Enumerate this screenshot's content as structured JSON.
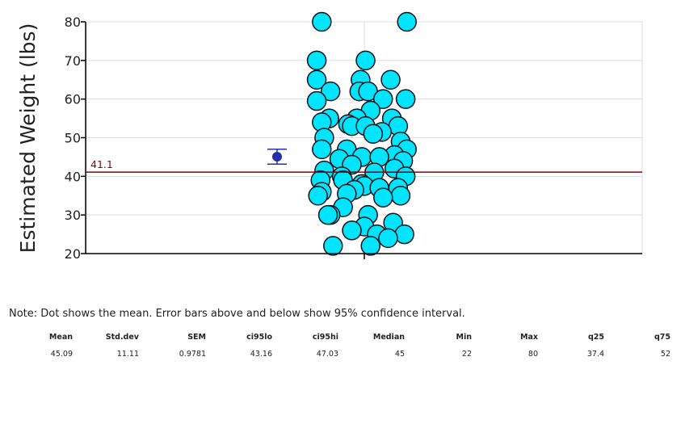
{
  "chart_data": {
    "type": "scatter",
    "title": "",
    "xlabel": "",
    "ylabel": "Estimated Weight (lbs)",
    "ylim": [
      20,
      80
    ],
    "yticks": [
      20,
      30,
      40,
      50,
      60,
      70,
      80
    ],
    "grid": true,
    "reference_line": {
      "value": 41.1,
      "label": "41.1",
      "color": "#8b0000"
    },
    "summary_marker": {
      "mean": 45.09,
      "ci_low": 43.16,
      "ci_high": 47.03,
      "color": "#2233aa"
    },
    "point_color": "#00e5ff",
    "points": [
      {
        "x": -0.34,
        "y": 80
      },
      {
        "x": 0.34,
        "y": 80
      },
      {
        "x": -0.38,
        "y": 70
      },
      {
        "x": 0.01,
        "y": 70
      },
      {
        "x": -0.38,
        "y": 65
      },
      {
        "x": -0.03,
        "y": 65
      },
      {
        "x": 0.21,
        "y": 65
      },
      {
        "x": -0.27,
        "y": 62
      },
      {
        "x": -0.04,
        "y": 62
      },
      {
        "x": 0.03,
        "y": 62
      },
      {
        "x": -0.38,
        "y": 59.5
      },
      {
        "x": 0.15,
        "y": 60
      },
      {
        "x": 0.33,
        "y": 60
      },
      {
        "x": 0.05,
        "y": 57
      },
      {
        "x": -0.28,
        "y": 55
      },
      {
        "x": -0.06,
        "y": 55
      },
      {
        "x": 0.22,
        "y": 55
      },
      {
        "x": -0.34,
        "y": 54
      },
      {
        "x": -0.13,
        "y": 53.5
      },
      {
        "x": -0.1,
        "y": 53
      },
      {
        "x": 0.01,
        "y": 53
      },
      {
        "x": 0.27,
        "y": 53
      },
      {
        "x": 0.14,
        "y": 51.5
      },
      {
        "x": 0.07,
        "y": 51
      },
      {
        "x": -0.32,
        "y": 50
      },
      {
        "x": 0.29,
        "y": 49
      },
      {
        "x": -0.34,
        "y": 47
      },
      {
        "x": -0.14,
        "y": 47
      },
      {
        "x": 0.34,
        "y": 47
      },
      {
        "x": 0.24,
        "y": 45.5
      },
      {
        "x": -0.02,
        "y": 45
      },
      {
        "x": 0.12,
        "y": 45
      },
      {
        "x": -0.2,
        "y": 44.5
      },
      {
        "x": 0.31,
        "y": 44
      },
      {
        "x": -0.1,
        "y": 43
      },
      {
        "x": 0.24,
        "y": 42
      },
      {
        "x": -0.32,
        "y": 41.5
      },
      {
        "x": 0.08,
        "y": 41
      },
      {
        "x": -0.18,
        "y": 40
      },
      {
        "x": 0.33,
        "y": 40
      },
      {
        "x": -0.35,
        "y": 39
      },
      {
        "x": -0.17,
        "y": 39
      },
      {
        "x": -0.02,
        "y": 38
      },
      {
        "x": 0.0,
        "y": 37.5
      },
      {
        "x": 0.12,
        "y": 37
      },
      {
        "x": 0.27,
        "y": 37
      },
      {
        "x": -0.08,
        "y": 36.5
      },
      {
        "x": -0.34,
        "y": 36
      },
      {
        "x": -0.14,
        "y": 35.5
      },
      {
        "x": -0.37,
        "y": 35
      },
      {
        "x": 0.29,
        "y": 35
      },
      {
        "x": 0.15,
        "y": 34.5
      },
      {
        "x": -0.17,
        "y": 32
      },
      {
        "x": -0.27,
        "y": 30
      },
      {
        "x": -0.29,
        "y": 30
      },
      {
        "x": 0.03,
        "y": 30
      },
      {
        "x": 0.23,
        "y": 28
      },
      {
        "x": 0.0,
        "y": 27
      },
      {
        "x": -0.1,
        "y": 26
      },
      {
        "x": 0.1,
        "y": 25
      },
      {
        "x": 0.32,
        "y": 25
      },
      {
        "x": 0.19,
        "y": 24
      },
      {
        "x": -0.25,
        "y": 22
      },
      {
        "x": 0.05,
        "y": 22
      }
    ]
  },
  "note": "Note: Dot shows the mean. Error bars above and below show 95% confidence interval.",
  "stats": {
    "headers": [
      "Mean",
      "Std.dev",
      "SEM",
      "ci95lo",
      "ci95hi",
      "Median",
      "Min",
      "Max",
      "q25",
      "q75"
    ],
    "values": [
      "45.09",
      "11.11",
      "0.9781",
      "43.16",
      "47.03",
      "45",
      "22",
      "80",
      "37.4",
      "52"
    ]
  }
}
